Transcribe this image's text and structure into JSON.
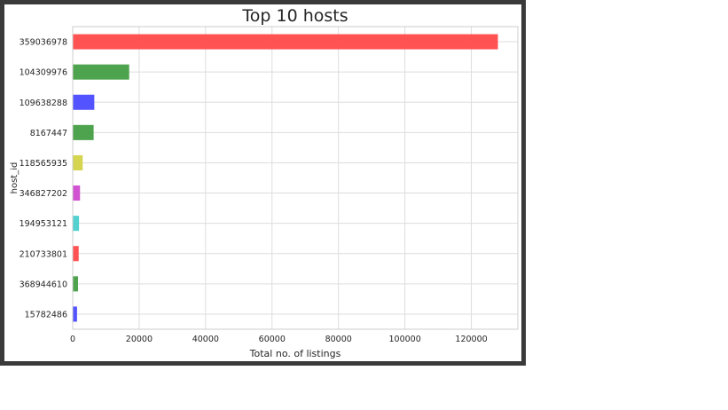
{
  "chart_data": {
    "type": "bar",
    "orientation": "horizontal",
    "title": "Top 10 hosts",
    "xlabel": "Total no. of listings",
    "ylabel": "host_id",
    "categories": [
      "359036978",
      "104309976",
      "109638288",
      "8167447",
      "118565935",
      "346827202",
      "194953121",
      "210733801",
      "368944610",
      "15782486"
    ],
    "values": [
      128000,
      17000,
      6500,
      6300,
      3000,
      2200,
      1900,
      1800,
      1600,
      1300
    ],
    "colors": [
      "#ff4d4d",
      "#48a048",
      "#4d4dff",
      "#48a048",
      "#d4d44a",
      "#d04dd0",
      "#4dd0d0",
      "#ff4d4d",
      "#48a048",
      "#4d4dff"
    ],
    "xlim": [
      0,
      134000
    ],
    "xticks": [
      0,
      20000,
      40000,
      60000,
      80000,
      100000,
      120000
    ],
    "grid": true
  }
}
